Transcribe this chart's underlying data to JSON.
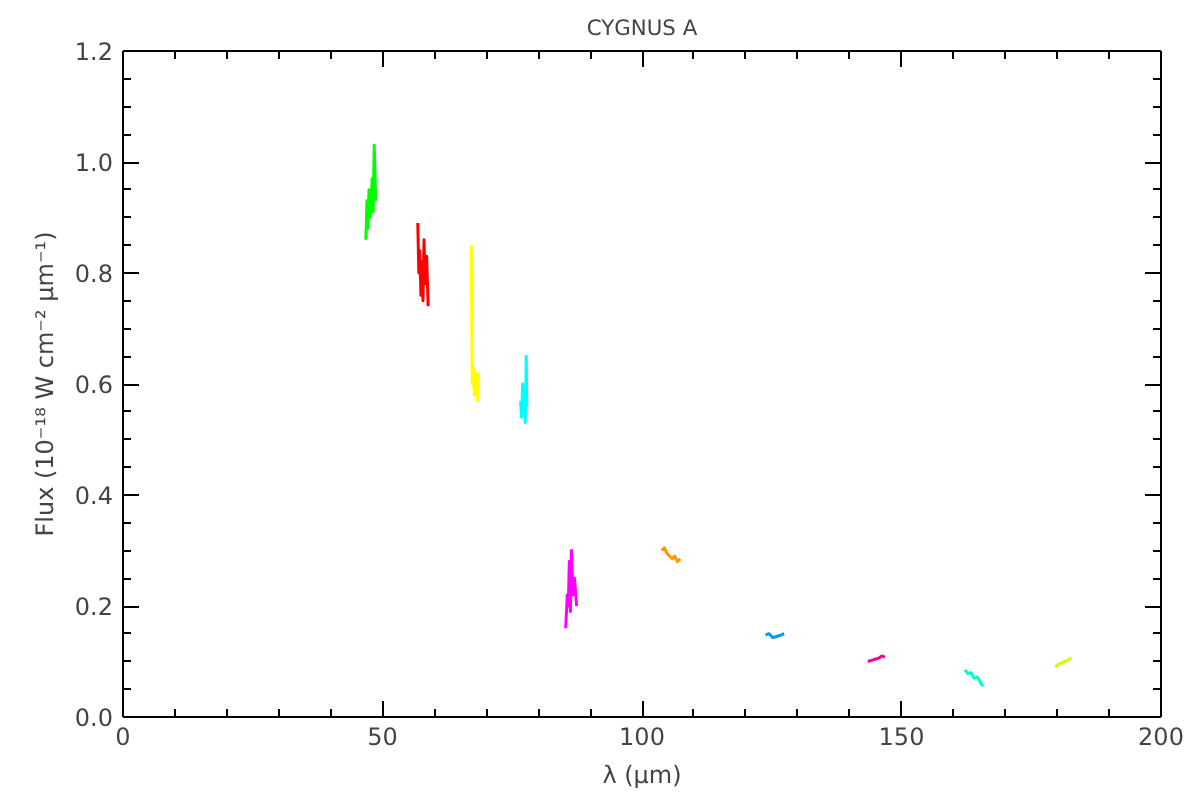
{
  "chart_data": {
    "type": "line",
    "title": "CYGNUS A",
    "xlabel": "λ (μm)",
    "ylabel": "Flux (10⁻¹⁸ W cm⁻² μm⁻¹)",
    "xlim": [
      0,
      200
    ],
    "ylim": [
      0,
      1.2
    ],
    "xticks": [
      0,
      50,
      100,
      150,
      200
    ],
    "yticks": [
      {
        "value": 0,
        "label": "0.0"
      },
      {
        "value": 0.2,
        "label": "0.2"
      },
      {
        "value": 0.4,
        "label": "0.4"
      },
      {
        "value": 0.6,
        "label": "0.6"
      },
      {
        "value": 0.8,
        "label": "0.8"
      },
      {
        "value": 1.0,
        "label": "1.0"
      },
      {
        "value": 1.2,
        "label": "1.2"
      }
    ],
    "grid": false,
    "marker": "none",
    "line_style": "solid",
    "series": [
      {
        "color": "#00ff00",
        "x": [
          46.8,
          47.0,
          47.2,
          47.4,
          47.6,
          47.8,
          48.0,
          48.2,
          48.4,
          48.7
        ],
        "values": [
          0.86,
          0.93,
          0.88,
          0.95,
          0.9,
          0.92,
          0.97,
          0.91,
          1.03,
          0.93
        ]
      },
      {
        "color": "#ff0000",
        "x": [
          56.8,
          57.0,
          57.2,
          57.4,
          57.6,
          57.8,
          58.0,
          58.2,
          58.5,
          58.8
        ],
        "values": [
          0.89,
          0.8,
          0.84,
          0.76,
          0.82,
          0.75,
          0.86,
          0.78,
          0.83,
          0.74
        ]
      },
      {
        "color": "#ffff00",
        "x": [
          67.1,
          67.3,
          67.5,
          67.7,
          67.9,
          68.1,
          68.3,
          68.5
        ],
        "values": [
          0.85,
          0.6,
          0.63,
          0.58,
          0.62,
          0.6,
          0.57,
          0.62
        ]
      },
      {
        "color": "#00ffff",
        "x": [
          76.6,
          76.8,
          77.0,
          77.2,
          77.4,
          77.5,
          77.7,
          77.8
        ],
        "values": [
          0.57,
          0.54,
          0.6,
          0.55,
          0.58,
          0.53,
          0.65,
          0.56
        ]
      },
      {
        "color": "#ff00ff",
        "x": [
          85.3,
          85.6,
          85.8,
          86.0,
          86.2,
          86.4,
          86.7,
          87.0,
          87.4
        ],
        "values": [
          0.16,
          0.22,
          0.2,
          0.28,
          0.19,
          0.3,
          0.22,
          0.25,
          0.2
        ]
      },
      {
        "color": "#ff9900",
        "x": [
          103.8,
          104.3,
          104.8,
          105.3,
          105.8,
          106.3,
          106.8,
          107.4
        ],
        "values": [
          0.3,
          0.305,
          0.295,
          0.29,
          0.285,
          0.29,
          0.28,
          0.285
        ]
      },
      {
        "color": "#0099ff",
        "x": [
          123.8,
          124.5,
          125.2,
          125.9,
          126.6,
          127.4
        ],
        "values": [
          0.148,
          0.15,
          0.143,
          0.145,
          0.147,
          0.15
        ]
      },
      {
        "color": "#ff0099",
        "x": [
          143.5,
          144.2,
          144.9,
          145.6,
          146.2,
          146.8
        ],
        "values": [
          0.1,
          0.102,
          0.104,
          0.106,
          0.11,
          0.108
        ]
      },
      {
        "color": "#00ffcc",
        "x": [
          162.2,
          162.8,
          163.4,
          164.0,
          164.6,
          165.2,
          165.7
        ],
        "values": [
          0.085,
          0.078,
          0.08,
          0.07,
          0.072,
          0.062,
          0.055
        ]
      },
      {
        "color": "#ccff00",
        "x": [
          179.6,
          180.2,
          180.8,
          181.4,
          182.0,
          182.7
        ],
        "values": [
          0.09,
          0.095,
          0.097,
          0.1,
          0.102,
          0.107
        ]
      }
    ]
  }
}
